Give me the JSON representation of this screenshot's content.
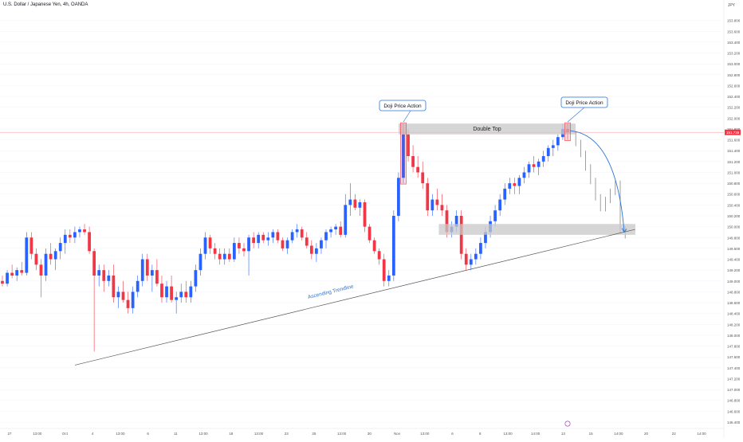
{
  "header": {
    "title": "U.S. Dollar / Japanese Yen, 4h, OANDA",
    "currency": "JPY"
  },
  "colors": {
    "up": "#2962ff",
    "down": "#f23645",
    "grid": "#f0f3fa",
    "trendline": "#555555",
    "curve": "#2a74d8",
    "label_border": "#2a74d8",
    "price_line": "#f23645",
    "zone": "#c8c8c8",
    "ghost": "#888888"
  },
  "chart_data": {
    "type": "candlestick",
    "symbol": "USDJPY",
    "timeframe": "4h",
    "ylim": [
      146.4,
      154.0
    ],
    "price_ticks": [
      "153.800",
      "153.600",
      "153.400",
      "153.200",
      "153.000",
      "152.800",
      "152.600",
      "152.400",
      "152.200",
      "152.000",
      "151.800",
      "151.600",
      "151.400",
      "151.200",
      "151.000",
      "150.800",
      "150.600",
      "150.400",
      "150.200",
      "150.000",
      "149.800",
      "149.600",
      "149.400",
      "149.200",
      "149.000",
      "148.800",
      "148.600",
      "148.400",
      "148.200",
      "148.000",
      "147.800",
      "147.600",
      "147.400",
      "147.200",
      "147.000",
      "146.800",
      "146.600",
      "146.400"
    ],
    "time_ticks": [
      "27",
      "13:00",
      "Oct",
      "4",
      "13:00",
      "6",
      "11",
      "13:00",
      "18",
      "13:00",
      "23",
      "25",
      "13:00",
      "30",
      "Nov",
      "13:00",
      "6",
      "8",
      "13:00",
      "14:00",
      "13",
      "15",
      "14:00",
      "20",
      "22",
      "14:00"
    ],
    "current_price": 151.738,
    "current_price_label": "151.738",
    "candles": [
      [
        149.0,
        149.1,
        148.9,
        148.95
      ],
      [
        148.95,
        149.2,
        148.9,
        149.15
      ],
      [
        149.15,
        149.3,
        149.05,
        149.1
      ],
      [
        149.1,
        149.25,
        149.0,
        149.2
      ],
      [
        149.2,
        149.35,
        149.1,
        149.15
      ],
      [
        149.15,
        149.9,
        149.1,
        149.8
      ],
      [
        149.8,
        149.9,
        149.4,
        149.5
      ],
      [
        149.5,
        149.6,
        149.2,
        149.3
      ],
      [
        149.3,
        149.4,
        148.7,
        149.1
      ],
      [
        149.1,
        149.6,
        149.0,
        149.5
      ],
      [
        149.5,
        149.7,
        149.3,
        149.4
      ],
      [
        149.4,
        149.6,
        149.2,
        149.55
      ],
      [
        149.55,
        149.8,
        149.4,
        149.7
      ],
      [
        149.7,
        149.95,
        149.5,
        149.85
      ],
      [
        149.85,
        149.95,
        149.7,
        149.8
      ],
      [
        149.8,
        150.0,
        149.7,
        149.9
      ],
      [
        149.9,
        150.0,
        149.8,
        149.95
      ],
      [
        149.95,
        150.05,
        149.85,
        149.9
      ],
      [
        149.9,
        150.0,
        149.5,
        149.55
      ],
      [
        149.55,
        149.6,
        147.7,
        149.1
      ],
      [
        149.1,
        149.3,
        148.9,
        149.2
      ],
      [
        149.2,
        149.3,
        148.8,
        149.0
      ],
      [
        149.0,
        149.2,
        148.9,
        149.1
      ],
      [
        149.1,
        149.3,
        148.6,
        148.7
      ],
      [
        148.7,
        148.9,
        148.5,
        148.8
      ],
      [
        148.8,
        149.0,
        148.6,
        148.65
      ],
      [
        148.65,
        148.8,
        148.4,
        148.5
      ],
      [
        148.5,
        148.9,
        148.4,
        148.8
      ],
      [
        148.8,
        149.1,
        148.7,
        149.0
      ],
      [
        149.0,
        149.5,
        148.9,
        149.4
      ],
      [
        149.4,
        149.5,
        149.0,
        149.1
      ],
      [
        149.1,
        149.3,
        148.8,
        149.2
      ],
      [
        149.2,
        149.4,
        148.9,
        148.95
      ],
      [
        148.95,
        149.1,
        148.6,
        148.7
      ],
      [
        148.7,
        149.0,
        148.6,
        148.9
      ],
      [
        148.9,
        149.1,
        148.6,
        148.65
      ],
      [
        148.65,
        148.8,
        148.4,
        148.7
      ],
      [
        148.7,
        148.95,
        148.6,
        148.8
      ],
      [
        148.8,
        149.0,
        148.6,
        148.7
      ],
      [
        148.7,
        149.0,
        148.6,
        148.9
      ],
      [
        148.9,
        149.3,
        148.8,
        149.2
      ],
      [
        149.2,
        149.6,
        149.1,
        149.5
      ],
      [
        149.5,
        149.9,
        149.4,
        149.8
      ],
      [
        149.8,
        149.85,
        149.5,
        149.6
      ],
      [
        149.6,
        149.7,
        149.4,
        149.5
      ],
      [
        149.5,
        149.6,
        149.3,
        149.4
      ],
      [
        149.4,
        149.6,
        149.3,
        149.5
      ],
      [
        149.5,
        149.6,
        149.35,
        149.4
      ],
      [
        149.4,
        149.8,
        149.35,
        149.7
      ],
      [
        149.7,
        149.8,
        149.5,
        149.6
      ],
      [
        149.6,
        149.7,
        149.45,
        149.55
      ],
      [
        149.55,
        149.85,
        149.1,
        149.8
      ],
      [
        149.8,
        149.9,
        149.6,
        149.7
      ],
      [
        149.7,
        149.9,
        149.6,
        149.85
      ],
      [
        149.85,
        149.9,
        149.7,
        149.75
      ],
      [
        149.75,
        149.9,
        149.65,
        149.8
      ],
      [
        149.8,
        149.95,
        149.7,
        149.9
      ],
      [
        149.9,
        149.95,
        149.7,
        149.75
      ],
      [
        149.75,
        149.8,
        149.55,
        149.6
      ],
      [
        149.6,
        149.8,
        149.5,
        149.75
      ],
      [
        149.75,
        149.95,
        149.7,
        149.9
      ],
      [
        149.9,
        150.05,
        149.8,
        149.95
      ],
      [
        149.95,
        150.0,
        149.75,
        149.8
      ],
      [
        149.8,
        149.9,
        149.6,
        149.65
      ],
      [
        149.65,
        149.75,
        149.4,
        149.5
      ],
      [
        149.5,
        149.7,
        149.35,
        149.6
      ],
      [
        149.6,
        149.8,
        149.5,
        149.75
      ],
      [
        149.75,
        149.95,
        149.6,
        149.9
      ],
      [
        149.9,
        150.0,
        149.8,
        149.95
      ],
      [
        149.95,
        150.05,
        149.85,
        150.0
      ],
      [
        150.0,
        150.1,
        149.8,
        149.85
      ],
      [
        149.85,
        150.6,
        149.8,
        150.4
      ],
      [
        150.4,
        150.8,
        150.2,
        150.5
      ],
      [
        150.5,
        150.6,
        150.3,
        150.35
      ],
      [
        150.35,
        150.5,
        150.2,
        150.45
      ],
      [
        150.45,
        150.5,
        149.9,
        150.0
      ],
      [
        150.0,
        150.05,
        149.7,
        149.75
      ],
      [
        149.75,
        149.8,
        149.5,
        149.55
      ],
      [
        149.55,
        149.6,
        149.3,
        149.4
      ],
      [
        149.4,
        149.5,
        148.9,
        149.0
      ],
      [
        149.0,
        149.2,
        148.9,
        149.1
      ],
      [
        149.1,
        150.3,
        149.0,
        150.2
      ],
      [
        150.2,
        151.0,
        150.1,
        150.9
      ],
      [
        150.9,
        151.9,
        150.8,
        151.7
      ],
      [
        151.7,
        151.8,
        151.2,
        151.3
      ],
      [
        151.3,
        151.5,
        151.0,
        151.1
      ],
      [
        151.1,
        151.3,
        150.9,
        151.0
      ],
      [
        151.0,
        151.2,
        150.7,
        150.8
      ],
      [
        150.8,
        150.9,
        150.2,
        150.3
      ],
      [
        150.3,
        150.6,
        150.2,
        150.5
      ],
      [
        150.5,
        150.7,
        150.3,
        150.4
      ],
      [
        150.4,
        150.6,
        150.2,
        150.3
      ],
      [
        150.3,
        150.4,
        149.8,
        149.9
      ],
      [
        149.9,
        150.1,
        149.8,
        150.0
      ],
      [
        150.0,
        150.3,
        149.9,
        150.2
      ],
      [
        150.2,
        150.3,
        149.4,
        149.5
      ],
      [
        149.5,
        149.6,
        149.2,
        149.3
      ],
      [
        149.3,
        149.5,
        149.2,
        149.4
      ],
      [
        149.4,
        149.6,
        149.3,
        149.5
      ],
      [
        149.5,
        149.8,
        149.4,
        149.7
      ],
      [
        149.7,
        150.0,
        149.6,
        149.9
      ],
      [
        149.9,
        150.2,
        149.8,
        150.1
      ],
      [
        150.1,
        150.4,
        150.0,
        150.3
      ],
      [
        150.3,
        150.6,
        150.2,
        150.5
      ],
      [
        150.5,
        150.8,
        150.4,
        150.7
      ],
      [
        150.7,
        150.9,
        150.6,
        150.8
      ],
      [
        150.8,
        150.9,
        150.6,
        150.75
      ],
      [
        150.75,
        150.95,
        150.6,
        150.9
      ],
      [
        150.9,
        151.1,
        150.8,
        151.0
      ],
      [
        151.0,
        151.2,
        150.9,
        151.15
      ],
      [
        151.15,
        151.3,
        151.0,
        151.1
      ],
      [
        151.1,
        151.25,
        150.95,
        151.2
      ],
      [
        151.2,
        151.4,
        151.1,
        151.3
      ],
      [
        151.3,
        151.5,
        151.2,
        151.45
      ],
      [
        151.45,
        151.6,
        151.3,
        151.5
      ],
      [
        151.5,
        151.7,
        151.4,
        151.65
      ],
      [
        151.65,
        151.9,
        151.6,
        151.8
      ],
      [
        151.8,
        151.9,
        151.6,
        151.74
      ]
    ],
    "projection": [
      151.74,
      151.6,
      151.4,
      151.15,
      150.9,
      150.6,
      150.4,
      150.55,
      150.7,
      150.85,
      150.0,
      149.9
    ],
    "annotations": {
      "doji_left": "Doji Price Action",
      "doji_right": "Doji Price Action",
      "double_top": "Double Top",
      "trendline": "Ascending Trendline"
    },
    "resistance_zone": [
      151.7,
      151.9
    ],
    "support_zone": [
      149.85,
      150.05
    ],
    "trendline": {
      "start": [
        "27",
        147.45
      ],
      "end": [
        "20",
        149.95
      ]
    }
  }
}
